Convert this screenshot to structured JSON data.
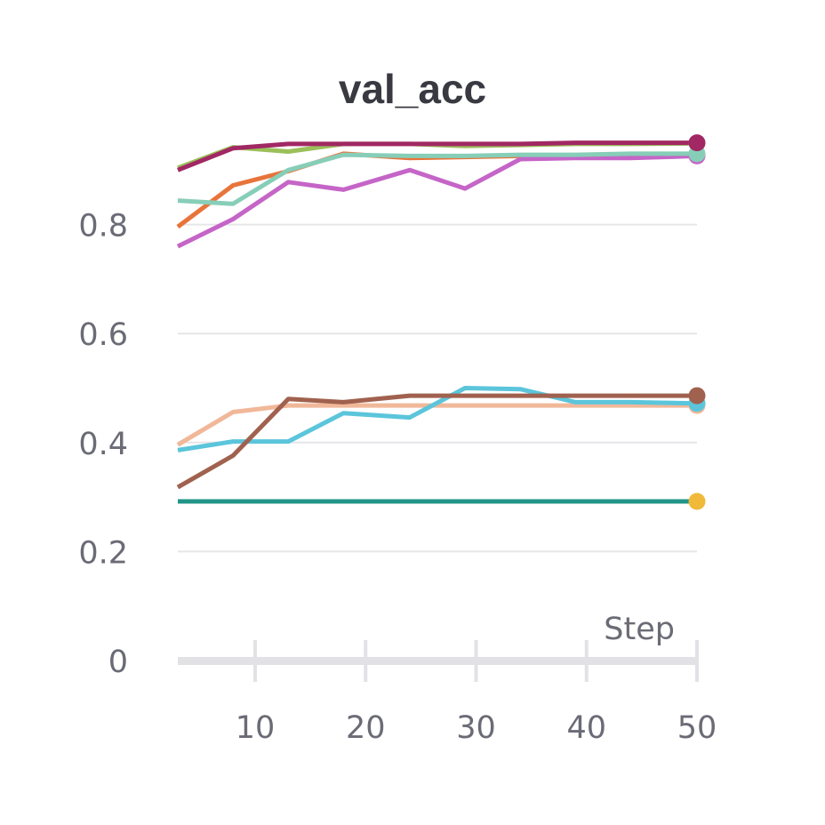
{
  "chart_data": {
    "type": "line",
    "title": "val_acc",
    "xlabel": "Step",
    "ylabel": "",
    "xlim": [
      3,
      50
    ],
    "ylim": [
      0,
      1.0
    ],
    "x_ticks": [
      10,
      20,
      30,
      40,
      50
    ],
    "x_tick_labels": [
      "10",
      "20",
      "30",
      "40",
      "50"
    ],
    "y_ticks": [
      0,
      0.2,
      0.4,
      0.6,
      0.8
    ],
    "y_tick_labels": [
      "0",
      "0.2",
      "0.4",
      "0.6",
      "0.8"
    ],
    "grid": true,
    "legend": "none",
    "series": [
      {
        "color": "#9bc05a",
        "endpoint_color": "#a8d47a",
        "x": [
          3,
          8,
          13,
          18,
          24,
          29,
          34,
          39,
          44,
          50
        ],
        "y": [
          0.904,
          0.942,
          0.934,
          0.948,
          0.948,
          0.944,
          0.946,
          0.948,
          0.948,
          0.949
        ]
      },
      {
        "color": "#e8743b",
        "endpoint_color": "#e8743b",
        "x": [
          3,
          8,
          13,
          18,
          24,
          29,
          34,
          39,
          44,
          50
        ],
        "y": [
          0.796,
          0.872,
          0.898,
          0.93,
          0.922,
          0.924,
          0.926,
          0.926,
          0.926,
          0.928
        ]
      },
      {
        "color": "#c565c7",
        "endpoint_color": "#c565c7",
        "x": [
          3,
          8,
          13,
          18,
          24,
          29,
          34,
          39,
          44,
          50
        ],
        "y": [
          0.76,
          0.81,
          0.878,
          0.864,
          0.9,
          0.866,
          0.92,
          0.922,
          0.922,
          0.926
        ]
      },
      {
        "color": "#87ceb8",
        "endpoint_color": "#87ceb8",
        "x": [
          3,
          8,
          13,
          18,
          24,
          29,
          34,
          39,
          44,
          50
        ],
        "y": [
          0.844,
          0.838,
          0.9,
          0.928,
          0.926,
          0.926,
          0.928,
          0.928,
          0.93,
          0.93
        ]
      },
      {
        "color": "#a12864",
        "endpoint_color": "#a12864",
        "x": [
          3,
          8,
          13,
          18,
          24,
          29,
          34,
          39,
          44,
          50
        ],
        "y": [
          0.9,
          0.94,
          0.948,
          0.948,
          0.948,
          0.948,
          0.948,
          0.95,
          0.95,
          0.95
        ]
      },
      {
        "color": "#f0b899",
        "endpoint_color": "#f0b899",
        "x": [
          3,
          8,
          13,
          18,
          24,
          29,
          34,
          39,
          44,
          50
        ],
        "y": [
          0.396,
          0.456,
          0.468,
          0.468,
          0.468,
          0.468,
          0.468,
          0.468,
          0.468,
          0.468
        ]
      },
      {
        "color": "#5bc5db",
        "endpoint_color": "#5bc5db",
        "x": [
          3,
          8,
          13,
          18,
          24,
          29,
          34,
          39,
          44,
          50
        ],
        "y": [
          0.386,
          0.402,
          0.402,
          0.454,
          0.446,
          0.5,
          0.498,
          0.474,
          0.474,
          0.472
        ]
      },
      {
        "color": "#a0614e",
        "endpoint_color": "#a0614e",
        "x": [
          3,
          8,
          13,
          18,
          24,
          29,
          34,
          39,
          44,
          50
        ],
        "y": [
          0.318,
          0.376,
          0.48,
          0.474,
          0.486,
          0.486,
          0.486,
          0.486,
          0.486,
          0.486
        ]
      },
      {
        "color": "#229487",
        "endpoint_color": "#f0b93a",
        "x": [
          3,
          50
        ],
        "y": [
          0.292,
          0.292
        ]
      }
    ]
  }
}
